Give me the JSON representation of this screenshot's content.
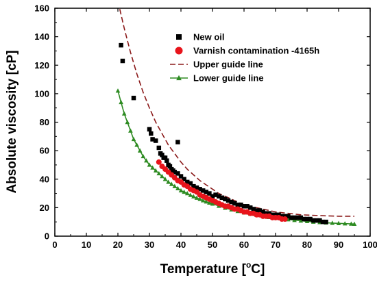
{
  "chart_data": {
    "type": "scatter",
    "xlabel_main": "Temperature [",
    "xlabel_sup": "o",
    "xlabel_unit": "C]",
    "ylabel": "Absolute viscosity [cP]",
    "xlim": [
      0,
      100
    ],
    "ylim": [
      0,
      160
    ],
    "xticks": [
      0,
      10,
      20,
      30,
      40,
      50,
      60,
      70,
      80,
      90,
      100
    ],
    "yticks": [
      0,
      20,
      40,
      60,
      80,
      100,
      120,
      140,
      160
    ],
    "grid": false,
    "legend_position": "top-right",
    "series": [
      {
        "name": "New oil",
        "kind": "scatter",
        "marker": "square",
        "color": "#000000",
        "points": [
          [
            21,
            134
          ],
          [
            21.5,
            123
          ],
          [
            25,
            97
          ],
          [
            30,
            75
          ],
          [
            30.5,
            72
          ],
          [
            31,
            68
          ],
          [
            32,
            67
          ],
          [
            33,
            62
          ],
          [
            33.5,
            58
          ],
          [
            34,
            57
          ],
          [
            34.5,
            55
          ],
          [
            35,
            55
          ],
          [
            35.5,
            53
          ],
          [
            36,
            50
          ],
          [
            36.5,
            49
          ],
          [
            37,
            47
          ],
          [
            37.5,
            46
          ],
          [
            38,
            45
          ],
          [
            39,
            66
          ],
          [
            39,
            44
          ],
          [
            40,
            42
          ],
          [
            41,
            40
          ],
          [
            42,
            38
          ],
          [
            43,
            37
          ],
          [
            44,
            35
          ],
          [
            45,
            34
          ],
          [
            46,
            33
          ],
          [
            47,
            32
          ],
          [
            48,
            31
          ],
          [
            49,
            30
          ],
          [
            50,
            28
          ],
          [
            51,
            29
          ],
          [
            52,
            28
          ],
          [
            53,
            27
          ],
          [
            54,
            26
          ],
          [
            55,
            25
          ],
          [
            56,
            24
          ],
          [
            57,
            23
          ],
          [
            58,
            22
          ],
          [
            59,
            22
          ],
          [
            60,
            21
          ],
          [
            61,
            21
          ],
          [
            62,
            20
          ],
          [
            63,
            19
          ],
          [
            64,
            18
          ],
          [
            65,
            18
          ],
          [
            66,
            17
          ],
          [
            67,
            16
          ],
          [
            68,
            16
          ],
          [
            69,
            15
          ],
          [
            70,
            15
          ],
          [
            71,
            15
          ],
          [
            72,
            14
          ],
          [
            73,
            14
          ],
          [
            74,
            14
          ],
          [
            75,
            13
          ],
          [
            76,
            13
          ],
          [
            77,
            13
          ],
          [
            78,
            13
          ],
          [
            79,
            12
          ],
          [
            80,
            12
          ],
          [
            81,
            12
          ],
          [
            82,
            11
          ],
          [
            83,
            11
          ],
          [
            84,
            11
          ],
          [
            85,
            10
          ],
          [
            86,
            10
          ]
        ]
      },
      {
        "name": "Varnish contamination -4165h",
        "kind": "scatter",
        "marker": "circle",
        "color": "#e8141b",
        "points": [
          [
            33,
            52
          ],
          [
            34,
            49
          ],
          [
            35,
            47
          ],
          [
            36,
            45
          ],
          [
            37,
            43
          ],
          [
            38,
            41
          ],
          [
            39,
            39
          ],
          [
            40,
            38
          ],
          [
            41,
            36
          ],
          [
            42,
            35
          ],
          [
            43,
            33
          ],
          [
            44,
            32
          ],
          [
            45,
            31
          ],
          [
            46,
            29
          ],
          [
            47,
            28
          ],
          [
            48,
            27
          ],
          [
            49,
            26
          ],
          [
            50,
            25
          ],
          [
            51,
            24
          ],
          [
            52,
            23
          ],
          [
            53,
            22
          ],
          [
            54,
            21
          ],
          [
            55,
            21
          ],
          [
            56,
            20
          ],
          [
            57,
            19
          ],
          [
            58,
            19
          ],
          [
            59,
            18
          ],
          [
            60,
            17
          ],
          [
            61,
            17
          ],
          [
            62,
            16
          ],
          [
            63,
            16
          ],
          [
            64,
            15
          ],
          [
            65,
            15
          ],
          [
            66,
            14
          ],
          [
            67,
            14
          ],
          [
            68,
            14
          ],
          [
            69,
            13
          ],
          [
            70,
            13
          ],
          [
            71,
            13
          ],
          [
            72,
            12
          ],
          [
            73,
            12
          ]
        ]
      },
      {
        "name": "Upper guide line",
        "kind": "line",
        "dash": "dashed",
        "color": "#8b1a1a",
        "points": [
          [
            20,
            165
          ],
          [
            22,
            146
          ],
          [
            24,
            129
          ],
          [
            26,
            114
          ],
          [
            28,
            101
          ],
          [
            30,
            90
          ],
          [
            32,
            80
          ],
          [
            34,
            72
          ],
          [
            36,
            64
          ],
          [
            38,
            58
          ],
          [
            40,
            52
          ],
          [
            42,
            47
          ],
          [
            44,
            43
          ],
          [
            46,
            39
          ],
          [
            48,
            36
          ],
          [
            50,
            33
          ],
          [
            52,
            30
          ],
          [
            54,
            28
          ],
          [
            56,
            26
          ],
          [
            58,
            24
          ],
          [
            60,
            22
          ],
          [
            62,
            21
          ],
          [
            64,
            20
          ],
          [
            66,
            19
          ],
          [
            68,
            18
          ],
          [
            70,
            17
          ],
          [
            72,
            16.5
          ],
          [
            74,
            16
          ],
          [
            76,
            15.5
          ],
          [
            78,
            15
          ],
          [
            80,
            14.8
          ],
          [
            85,
            14.3
          ],
          [
            90,
            14
          ],
          [
            95,
            14
          ]
        ]
      },
      {
        "name": "Lower guide line",
        "kind": "line-marker",
        "marker": "triangle",
        "color": "#2e8b22",
        "points": [
          [
            20,
            102
          ],
          [
            21,
            94
          ],
          [
            22,
            86
          ],
          [
            23,
            80
          ],
          [
            24,
            74
          ],
          [
            25,
            68
          ],
          [
            26,
            64
          ],
          [
            27,
            60
          ],
          [
            28,
            56
          ],
          [
            29,
            53
          ],
          [
            30,
            50
          ],
          [
            31,
            48
          ],
          [
            32,
            46
          ],
          [
            33,
            44
          ],
          [
            34,
            42
          ],
          [
            35,
            40
          ],
          [
            36,
            38
          ],
          [
            37,
            36.5
          ],
          [
            38,
            35
          ],
          [
            39,
            33.5
          ],
          [
            40,
            32
          ],
          [
            41,
            31
          ],
          [
            42,
            30
          ],
          [
            43,
            28.8
          ],
          [
            44,
            27.8
          ],
          [
            45,
            26.8
          ],
          [
            46,
            26
          ],
          [
            47,
            25
          ],
          [
            48,
            24.2
          ],
          [
            49,
            23.4
          ],
          [
            50,
            22.7
          ],
          [
            52,
            21.2
          ],
          [
            54,
            19.8
          ],
          [
            56,
            18.6
          ],
          [
            58,
            17.5
          ],
          [
            60,
            16.5
          ],
          [
            62,
            15.6
          ],
          [
            64,
            14.8
          ],
          [
            66,
            14
          ],
          [
            68,
            13.3
          ],
          [
            70,
            12.7
          ],
          [
            72,
            12.2
          ],
          [
            74,
            11.7
          ],
          [
            76,
            11.2
          ],
          [
            78,
            10.8
          ],
          [
            80,
            10.4
          ],
          [
            82,
            10
          ],
          [
            84,
            9.7
          ],
          [
            86,
            9.4
          ],
          [
            88,
            9.2
          ],
          [
            90,
            9
          ],
          [
            92,
            8.8
          ],
          [
            94,
            8.6
          ],
          [
            95,
            8.5
          ]
        ]
      }
    ]
  }
}
